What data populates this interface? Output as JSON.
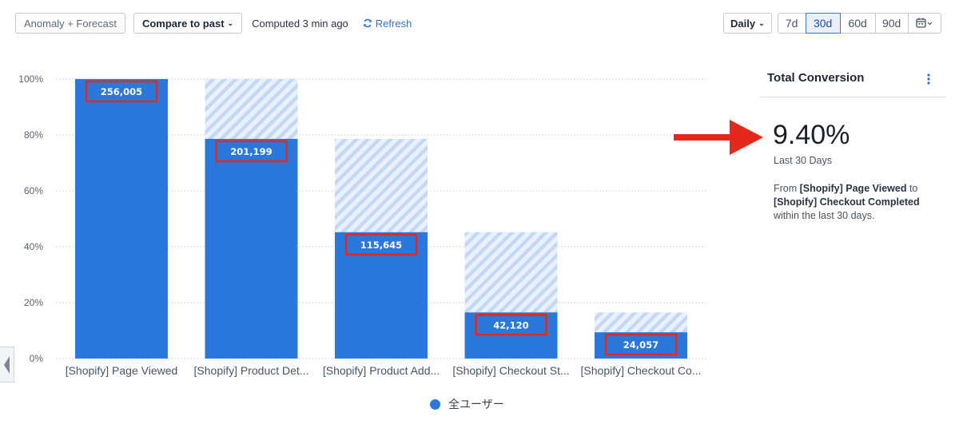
{
  "toolbar": {
    "anomaly_label": "Anomaly + Forecast",
    "compare_label": "Compare to past",
    "computed_text": "Computed 3 min ago",
    "refresh_label": "Refresh",
    "interval_label": "Daily",
    "ranges": [
      "7d",
      "30d",
      "60d",
      "90d"
    ],
    "active_range": "30d",
    "calendar_icon": "calendar-icon",
    "accent_color": "#2f6fdc"
  },
  "panel": {
    "title": "Total Conversion",
    "value": "9.40%",
    "period": "Last 30 Days",
    "desc_prefix": "From ",
    "desc_from": "[Shopify] Page Viewed",
    "desc_mid": " to ",
    "desc_to": "[Shopify] Checkout Completed",
    "desc_suffix": "within the last 30 days."
  },
  "legend": {
    "label": "全ユーザー",
    "color": "#2b78dc"
  },
  "chart_data": {
    "type": "bar",
    "categories": [
      "[Shopify] Page Viewed",
      "[Shopify] Product Det...",
      "[Shopify] Product Add...",
      "[Shopify] Checkout St...",
      "[Shopify] Checkout Co..."
    ],
    "series": [
      {
        "name": "全ユーザー",
        "values": [
          256005,
          201199,
          115645,
          42120,
          24057
        ],
        "labels": [
          "256,005",
          "201,199",
          "115,645",
          "42,120",
          "24,057"
        ]
      }
    ],
    "percent_of_first": [
      100,
      78.6,
      45.2,
      16.5,
      9.4
    ],
    "previous_step_percent": [
      100,
      100,
      78.6,
      45.2,
      16.5
    ],
    "yticks": [
      "0%",
      "20%",
      "40%",
      "60%",
      "80%",
      "100%"
    ],
    "ylim": [
      0,
      100
    ],
    "grid": true,
    "legend_position": "bottom",
    "bar_color": "#2b78dc",
    "dropoff_color": "#c4d8f6",
    "highlight_color": "#e5281d"
  }
}
